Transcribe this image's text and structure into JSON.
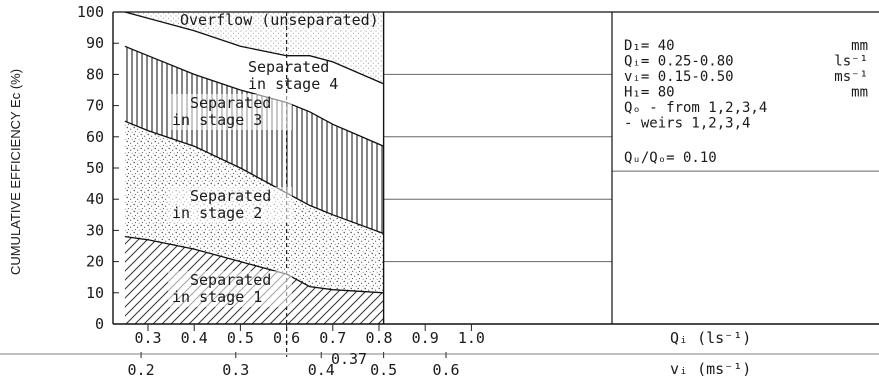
{
  "chart_data": {
    "type": "area",
    "ylabel": "CUMULATIVE EFFICIENCY Eᴄ (%)",
    "ylim": [
      0,
      100
    ],
    "yticks": [
      "0",
      "10",
      "20",
      "30",
      "40",
      "50",
      "60",
      "70",
      "80",
      "90",
      "100"
    ],
    "x_top": {
      "label": "Qᵢ (ls⁻¹)",
      "ticks": [
        "0.3",
        "0.4",
        "0.5",
        "0.6",
        "0.7",
        "0.8",
        "0.9",
        "1.0"
      ],
      "xlim": [
        0.25,
        1.1
      ]
    },
    "x_bottom": {
      "label": "vᵢ (ms⁻¹)",
      "ticks": [
        "0.2",
        "0.3",
        "0.4",
        "0.5",
        "0.6"
      ],
      "positions_in_Qi": [
        0.285,
        0.49,
        0.675,
        0.81,
        0.945
      ]
    },
    "marker": {
      "qi": 0.6,
      "label": "0.37"
    },
    "data_extent_qi": [
      0.25,
      0.81
    ],
    "boundaries": [
      {
        "name": "stage 1 upper",
        "x": [
          0.25,
          0.3,
          0.4,
          0.5,
          0.6,
          0.65,
          0.7,
          0.81
        ],
        "y": [
          28,
          27,
          24,
          20,
          16,
          12,
          11,
          10
        ]
      },
      {
        "name": "stage 2 upper",
        "x": [
          0.25,
          0.3,
          0.4,
          0.5,
          0.6,
          0.65,
          0.7,
          0.81
        ],
        "y": [
          65,
          62,
          57,
          50,
          42,
          38,
          35,
          29
        ]
      },
      {
        "name": "stage 3 upper",
        "x": [
          0.25,
          0.3,
          0.4,
          0.5,
          0.6,
          0.65,
          0.7,
          0.81
        ],
        "y": [
          89,
          86,
          80,
          75,
          71,
          68,
          64,
          57
        ]
      },
      {
        "name": "stage 4 upper",
        "x": [
          0.25,
          0.3,
          0.4,
          0.5,
          0.6,
          0.65,
          0.7,
          0.81
        ],
        "y": [
          100,
          98,
          94,
          89,
          86,
          86,
          84,
          77
        ]
      }
    ],
    "regions": [
      {
        "line1": "Separated",
        "line2": "in stage 1",
        "fill": "hatch"
      },
      {
        "line1": "Separated",
        "line2": "in stage 2",
        "fill": "stipple"
      },
      {
        "line1": "Separated",
        "line2": "in stage 3",
        "fill": "vertical"
      },
      {
        "line1": "Separated",
        "line2": "in stage 4",
        "fill": "none"
      },
      {
        "line1": "Overflow (unseparated)",
        "line2": "",
        "fill": "stipple-light"
      }
    ],
    "info_lines": [
      {
        "text": "D₁= 40",
        "unit": "mm"
      },
      {
        "text": "Qᵢ= 0.25-0.80",
        "unit": "ls⁻¹"
      },
      {
        "text": "vᵢ= 0.15-0.50",
        "unit": "ms⁻¹"
      },
      {
        "text": "H₁= 80",
        "unit": "mm"
      },
      {
        "text": "Qₒ - from 1,2,3,4",
        "unit": ""
      },
      {
        "text": "   - weirs 1,2,3,4",
        "unit": ""
      }
    ],
    "ratio_note": "Qᵤ/Qₒ= 0.10"
  }
}
